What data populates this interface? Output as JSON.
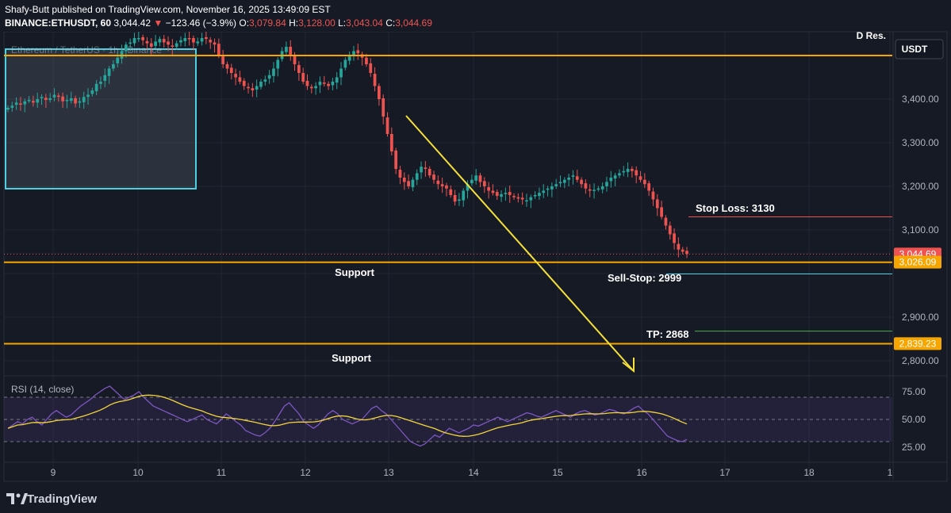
{
  "header": {
    "line1": "Shafy-Butt published on TradingView.com, November 16, 2025 13:49:09 EST",
    "symbol": "BINANCE:ETHUSDT, 60",
    "last": "3,044.42",
    "change_arrow": "▼",
    "change": "−123.46 (−3.9%)",
    "o_label": "O:",
    "o_value": "3,079.84",
    "h_label": "H:",
    "h_value": "3,128.00",
    "l_label": "L:",
    "l_value": "3,043.04",
    "c_label": "C:",
    "c_value": "3,044.69"
  },
  "watermark": "Ethereum / TetherUS · 1h · Binance",
  "currency_button": "USDT",
  "footer": {
    "logo_text": "TradingView"
  },
  "colors": {
    "background": "#161a25",
    "up": "#26a69a",
    "down": "#ef5350",
    "level": "#f7a600",
    "trend_arrow": "#f5e13a",
    "rsi_line": "#7e57c2",
    "rsi_ma": "#f5d63a",
    "stop_loss_line": "#ef5350",
    "sell_stop_line": "#4dd0e1",
    "tp_line": "#4caf50",
    "box": "#4dd0e1"
  },
  "chart_data": {
    "type": "candlestick",
    "title": "Ethereum / TetherUS · 1h · Binance",
    "x_ticks": [
      "9",
      "10",
      "11",
      "12",
      "13",
      "14",
      "15",
      "16",
      "17",
      "18",
      "1"
    ],
    "y_ticks": [
      "3,400.00",
      "3,300.00",
      "3,200.00",
      "3,100.00",
      "2,900.00",
      "2,800.00"
    ],
    "ylim": [
      2780,
      3540
    ],
    "price_labels": [
      {
        "text": "3,044.69",
        "value": 3044.69,
        "color": "#ef5350"
      },
      {
        "text": "3,026.09",
        "value": 3026.09,
        "color": "#f7a600"
      },
      {
        "text": "2,839.23",
        "value": 2839.23,
        "color": "#f7a600"
      }
    ],
    "levels": [
      {
        "name": "D Res.",
        "value": 3500
      },
      {
        "name": "Support",
        "value": 3026
      },
      {
        "name": "Support",
        "value": 2839
      }
    ],
    "annotations": [
      {
        "text": "Stop Loss: 3130",
        "value": 3130
      },
      {
        "text": "Sell-Stop: 2999",
        "value": 2999
      },
      {
        "text": "TP: 2868",
        "value": 2868
      }
    ],
    "candles_close": [
      3380,
      3385,
      3392,
      3388,
      3395,
      3398,
      3392,
      3400,
      3405,
      3398,
      3402,
      3410,
      3406,
      3395,
      3398,
      3402,
      3390,
      3395,
      3405,
      3410,
      3420,
      3435,
      3440,
      3455,
      3470,
      3480,
      3495,
      3510,
      3525,
      3530,
      3540,
      3540,
      3535,
      3528,
      3520,
      3532,
      3538,
      3530,
      3525,
      3520,
      3528,
      3535,
      3540,
      3538,
      3530,
      3532,
      3540,
      3538,
      3530,
      3525,
      3500,
      3480,
      3470,
      3460,
      3450,
      3440,
      3430,
      3425,
      3420,
      3430,
      3440,
      3445,
      3455,
      3470,
      3490,
      3510,
      3520,
      3500,
      3480,
      3460,
      3440,
      3430,
      3425,
      3430,
      3440,
      3435,
      3430,
      3440,
      3450,
      3470,
      3490,
      3500,
      3510,
      3505,
      3495,
      3480,
      3460,
      3430,
      3400,
      3360,
      3320,
      3280,
      3240,
      3220,
      3210,
      3200,
      3215,
      3230,
      3245,
      3240,
      3225,
      3215,
      3205,
      3200,
      3195,
      3180,
      3165,
      3170,
      3190,
      3205,
      3215,
      3225,
      3210,
      3200,
      3190,
      3185,
      3178,
      3182,
      3185,
      3180,
      3175,
      3172,
      3170,
      3168,
      3175,
      3180,
      3185,
      3190,
      3195,
      3200,
      3205,
      3210,
      3215,
      3220,
      3225,
      3215,
      3205,
      3195,
      3190,
      3192,
      3195,
      3200,
      3210,
      3220,
      3225,
      3230,
      3235,
      3240,
      3235,
      3225,
      3215,
      3205,
      3190,
      3170,
      3150,
      3130,
      3110,
      3090,
      3070,
      3055,
      3050,
      3044.69
    ],
    "candles_direction_seed": [
      1,
      0,
      1,
      0,
      1,
      1,
      0,
      1
    ],
    "rsi": {
      "label": "RSI (14, close)",
      "y_ticks": [
        "75.00",
        "50.00",
        "25.00"
      ],
      "ylim": [
        20,
        80
      ],
      "bands": [
        70,
        50,
        30
      ],
      "values": [
        42,
        45,
        48,
        46,
        50,
        52,
        48,
        45,
        50,
        55,
        58,
        55,
        52,
        54,
        58,
        62,
        65,
        68,
        72,
        75,
        78,
        80,
        76,
        72,
        68,
        70,
        72,
        75,
        70,
        66,
        62,
        60,
        58,
        56,
        54,
        52,
        50,
        48,
        50,
        52,
        54,
        50,
        48,
        46,
        50,
        55,
        52,
        48,
        45,
        40,
        38,
        36,
        35,
        38,
        42,
        48,
        55,
        62,
        65,
        60,
        55,
        48,
        45,
        42,
        45,
        50,
        55,
        58,
        55,
        50,
        48,
        46,
        48,
        50,
        55,
        60,
        62,
        58,
        55,
        50,
        45,
        40,
        35,
        30,
        28,
        26,
        28,
        32,
        36,
        34,
        38,
        42,
        40,
        38,
        40,
        42,
        45,
        44,
        46,
        48,
        50,
        52,
        50,
        48,
        50,
        52,
        54,
        56,
        55,
        53,
        52,
        54,
        56,
        58,
        56,
        54,
        52,
        55,
        57,
        58,
        56,
        54,
        55,
        57,
        59,
        58,
        56,
        55,
        57,
        60,
        62,
        58,
        55,
        50,
        45,
        40,
        35,
        33,
        31,
        30,
        32
      ]
    }
  }
}
